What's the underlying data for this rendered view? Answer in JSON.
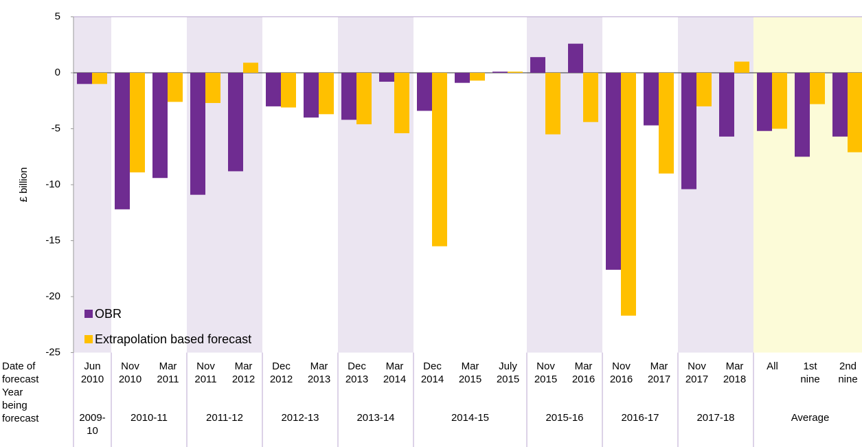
{
  "chart_data": {
    "type": "bar",
    "y_label": "£ billion",
    "row_labels": [
      "Date of forecast",
      "Year being forecast"
    ],
    "categories": [
      "Jun 2010",
      "Nov 2010",
      "Mar 2011",
      "Nov 2011",
      "Mar 2012",
      "Dec 2012",
      "Mar 2013",
      "Dec 2013",
      "Mar 2014",
      "Dec 2014",
      "Mar 2015",
      "July 2015",
      "Nov 2015",
      "Mar 2016",
      "Nov 2016",
      "Mar 2017",
      "Nov 2017",
      "Mar 2018",
      "All",
      "1st nine",
      "2nd nine"
    ],
    "year_being_forecast": [
      "2009-10",
      "2010-11",
      null,
      "2011-12",
      null,
      "2012-13",
      null,
      "2013-14",
      null,
      "2014-15",
      null,
      null,
      "2015-16",
      null,
      "2016-17",
      null,
      "2017-18",
      null,
      "Average",
      null,
      null
    ],
    "series": [
      {
        "name": "OBR",
        "color": "#6f2c91",
        "values": [
          -1.0,
          -12.2,
          -9.4,
          -10.9,
          -8.8,
          -3.0,
          -4.0,
          -4.2,
          -0.8,
          -3.4,
          -0.9,
          0.1,
          1.4,
          2.6,
          -17.6,
          -4.7,
          -10.4,
          -5.7,
          -5.2,
          -7.5,
          -5.7
        ]
      },
      {
        "name": "Extrapolation based forecast",
        "color": "#ffc000",
        "values": [
          -1.0,
          -8.9,
          -2.6,
          -2.7,
          0.9,
          -3.1,
          -3.7,
          -4.6,
          -5.4,
          -15.5,
          -0.7,
          0.1,
          -5.5,
          -4.4,
          -21.7,
          -9.0,
          -3.0,
          1.0,
          -5.0,
          -2.8,
          -7.1
        ]
      }
    ],
    "band_colors": [
      "#ebe5f1",
      "#ffffff",
      "#fcfbd8"
    ],
    "ylim": [
      -25,
      5
    ],
    "yticks": [
      -25,
      -20,
      -15,
      -10,
      -5,
      0,
      5
    ],
    "legend": "bottom-left"
  }
}
